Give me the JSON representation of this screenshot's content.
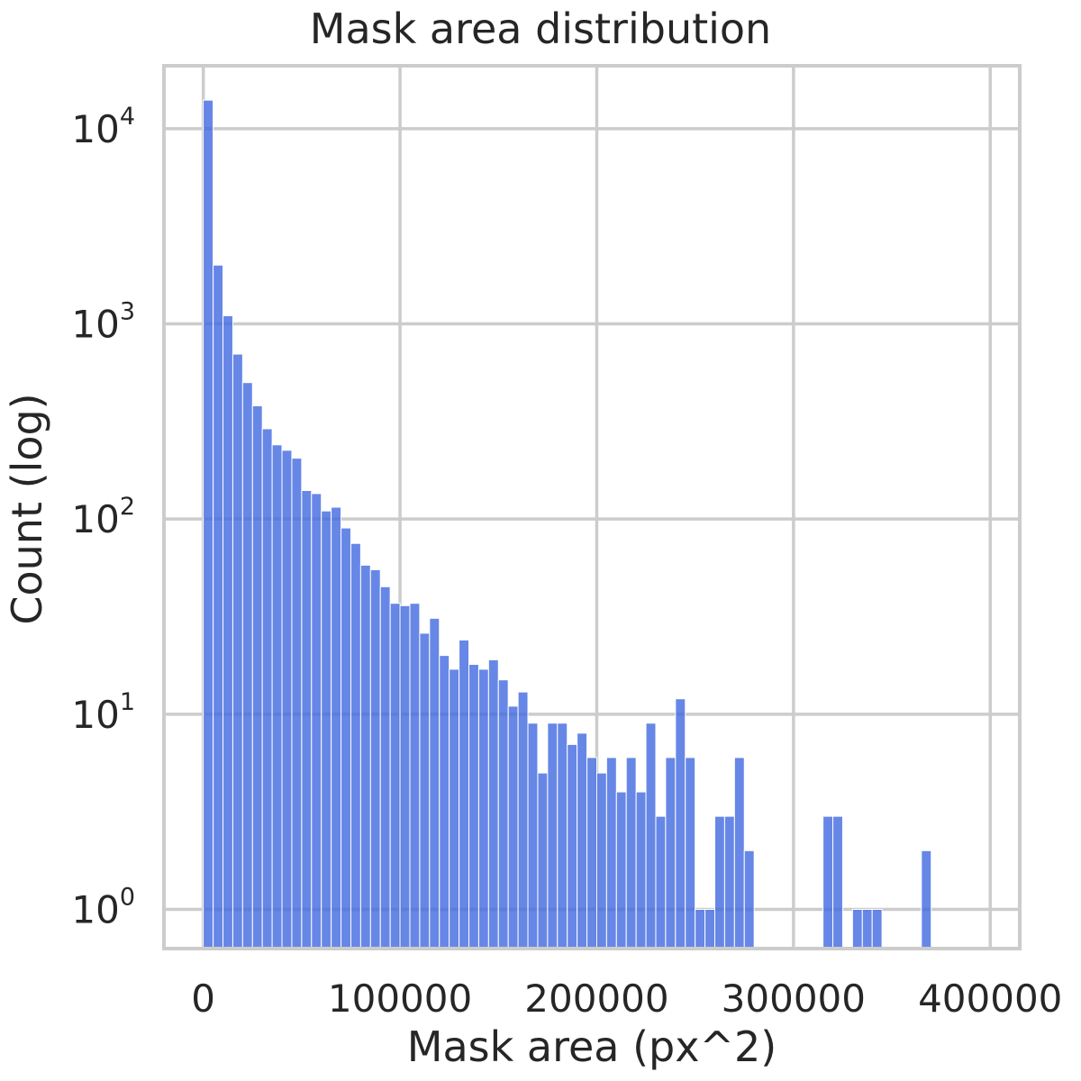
{
  "chart_data": {
    "type": "bar",
    "title": "Mask area distribution",
    "xlabel": "Mask area (px^2)",
    "ylabel": "Count (log)",
    "yscale": "log",
    "grid": true,
    "bar_color": "#4169e1",
    "xlim": [
      -20000,
      415000
    ],
    "ylim": [
      0.63,
      21000
    ],
    "xticks": [
      0,
      100000,
      200000,
      300000,
      400000
    ],
    "xtick_labels": [
      "0",
      "100000",
      "200000",
      "300000",
      "400000"
    ],
    "yticks": [
      1,
      10,
      100,
      1000,
      10000
    ],
    "ytick_base": [
      "10",
      "10",
      "10",
      "10",
      "10"
    ],
    "ytick_exp": [
      "0",
      "1",
      "2",
      "3",
      "4"
    ],
    "bin_start": 0,
    "bin_width": 5000,
    "values": [
      14000,
      2000,
      1100,
      700,
      500,
      380,
      290,
      240,
      225,
      205,
      140,
      135,
      110,
      115,
      90,
      75,
      58,
      55,
      45,
      37,
      36,
      37,
      26,
      31,
      20,
      17,
      24,
      18,
      17,
      19,
      15,
      11,
      13,
      9,
      5,
      9,
      9,
      7,
      8,
      6,
      5,
      6,
      4,
      6,
      4,
      9,
      3,
      6,
      12,
      6,
      1,
      1,
      3,
      3,
      6,
      2,
      0,
      0,
      0,
      0,
      0,
      0,
      0,
      3,
      3,
      0,
      1,
      1,
      1,
      0,
      0,
      0,
      0,
      2
    ]
  }
}
